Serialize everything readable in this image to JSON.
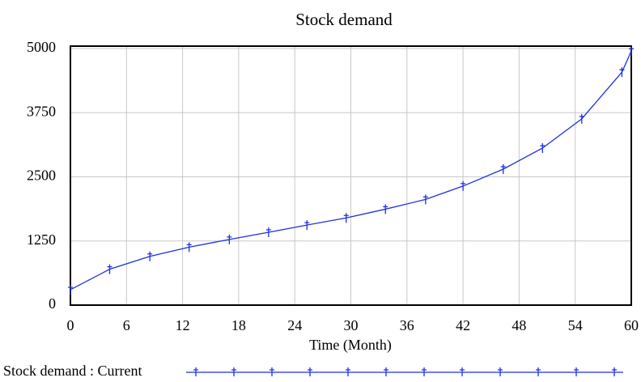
{
  "chart_data": {
    "type": "line",
    "title": "Stock demand",
    "x_label": "Time (Month)",
    "x": [
      0,
      4.2,
      8.5,
      12.7,
      17,
      21.2,
      25.3,
      29.5,
      33.7,
      38,
      42,
      46.3,
      50.5,
      54.7,
      59,
      60
    ],
    "series": [
      {
        "name": "Stock demand : Current",
        "color": "#1f2fe0",
        "values": [
          300,
          700,
          950,
          1130,
          1280,
          1420,
          1560,
          1700,
          1870,
          2060,
          2320,
          2650,
          3060,
          3630,
          4540,
          4950
        ]
      }
    ],
    "xlim": [
      0,
      60
    ],
    "xticks": [
      0,
      6,
      12,
      18,
      24,
      30,
      36,
      42,
      48,
      54,
      60
    ],
    "ylim": [
      0,
      5000
    ],
    "yticks": [
      0,
      1250,
      2500,
      3750,
      5000
    ],
    "grid": true
  }
}
